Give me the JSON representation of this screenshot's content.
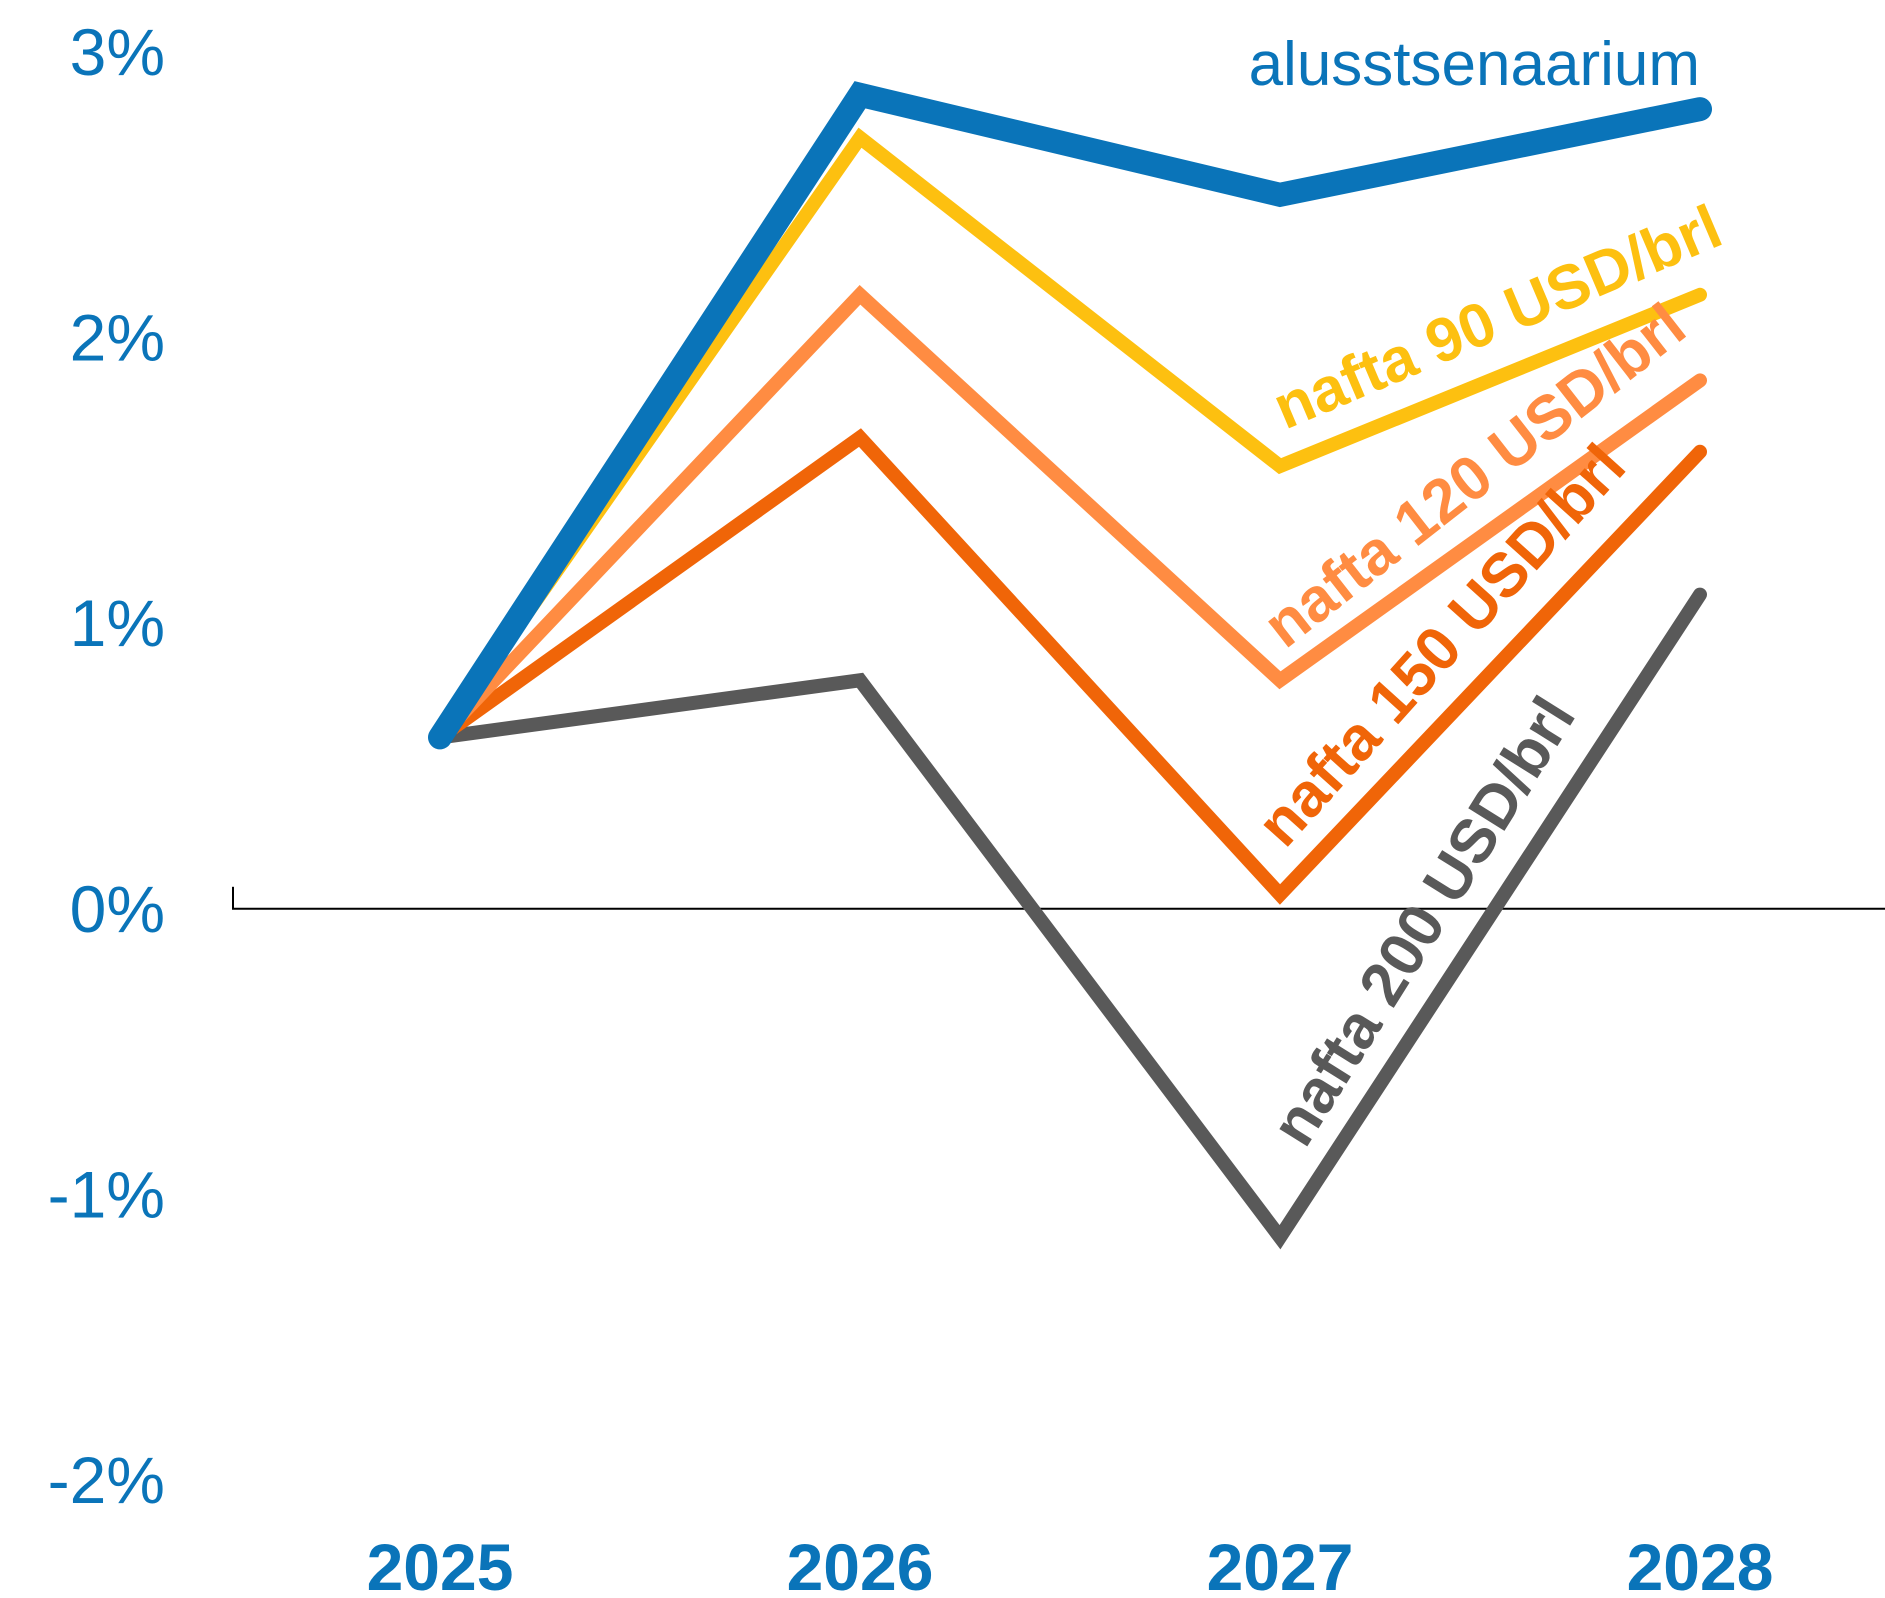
{
  "chart_data": {
    "type": "line",
    "title": "",
    "xlabel": "",
    "ylabel": "",
    "categories": [
      "2025",
      "2026",
      "2027",
      "2028"
    ],
    "ylim": [
      -2,
      3
    ],
    "yticks": [
      "3%",
      "2%",
      "1%",
      "0%",
      "-1%",
      "-2%"
    ],
    "ytick_values": [
      3,
      2,
      1,
      0,
      -1,
      -2
    ],
    "grid": false,
    "series": [
      {
        "name": "alusstsenaarium",
        "values": [
          0.6,
          2.85,
          2.5,
          2.8
        ],
        "color": "#0a74b9"
      },
      {
        "name": "nafta 90 USD/brl",
        "values": [
          0.6,
          2.7,
          1.55,
          2.15
        ],
        "color": "#fdc010"
      },
      {
        "name": "nafta 120 USD/brl",
        "values": [
          0.6,
          2.15,
          0.8,
          1.85
        ],
        "color": "#ff8c42"
      },
      {
        "name": "nafta 150 USD/brl",
        "values": [
          0.6,
          1.65,
          0.05,
          1.6
        ],
        "color": "#f06508"
      },
      {
        "name": "nafta 200 USD/brl",
        "values": [
          0.6,
          0.8,
          -1.15,
          1.1
        ],
        "color": "#595959"
      }
    ]
  }
}
